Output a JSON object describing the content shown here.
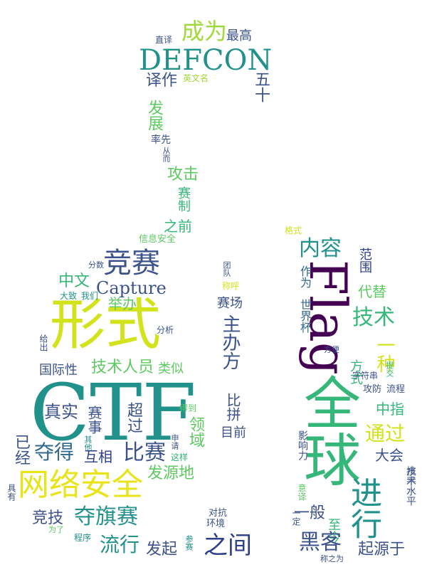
{
  "palette": {
    "dark_purple": "#440154",
    "indigo": "#3b528b",
    "blue": "#31688e",
    "teal": "#21918c",
    "green_teal": "#35b779",
    "green": "#5ec962",
    "lime": "#a0da39",
    "yellow": "#d2e21b",
    "bright_yellow": "#e8e419",
    "deep_blue": "#2c3e8c"
  },
  "words": [
    "CTF",
    "形式",
    "全球",
    "Flag",
    "网络安全",
    "DEFCON",
    "竞赛",
    "Capture",
    "成为",
    "最高",
    "直译",
    "译作",
    "英文名",
    "五十",
    "发展",
    "率先",
    "从而",
    "攻击",
    "赛制",
    "之前",
    "信息安全",
    "格式",
    "内容",
    "范围",
    "代替",
    "技术",
    "世界杯",
    "作为",
    "方式",
    "一种",
    "提交",
    "方便",
    "字符串",
    "攻防",
    "流程",
    "中指",
    "通过",
    "大会",
    "影响力",
    "水平",
    "技术水平",
    "一般",
    "一定",
    "意译",
    "至今",
    "进行",
    "黑客",
    "起源于",
    "称之为",
    "中文",
    "举办",
    "分数",
    "大致",
    "我们",
    "分析",
    "给出",
    "国际性",
    "技术人员",
    "类似",
    "主办方",
    "团队",
    "称呼",
    "赛场",
    "比拼",
    "目前",
    "真实",
    "赛事",
    "超过",
    "得到",
    "领域",
    "申请",
    "这样",
    "其他",
    "夺得",
    "互相",
    "比赛",
    "已经",
    "发源地",
    "具有",
    "竞技",
    "夺旗赛",
    "为了",
    "程序",
    "流行",
    "发起",
    "参赛",
    "对抗",
    "环境",
    "之间"
  ]
}
